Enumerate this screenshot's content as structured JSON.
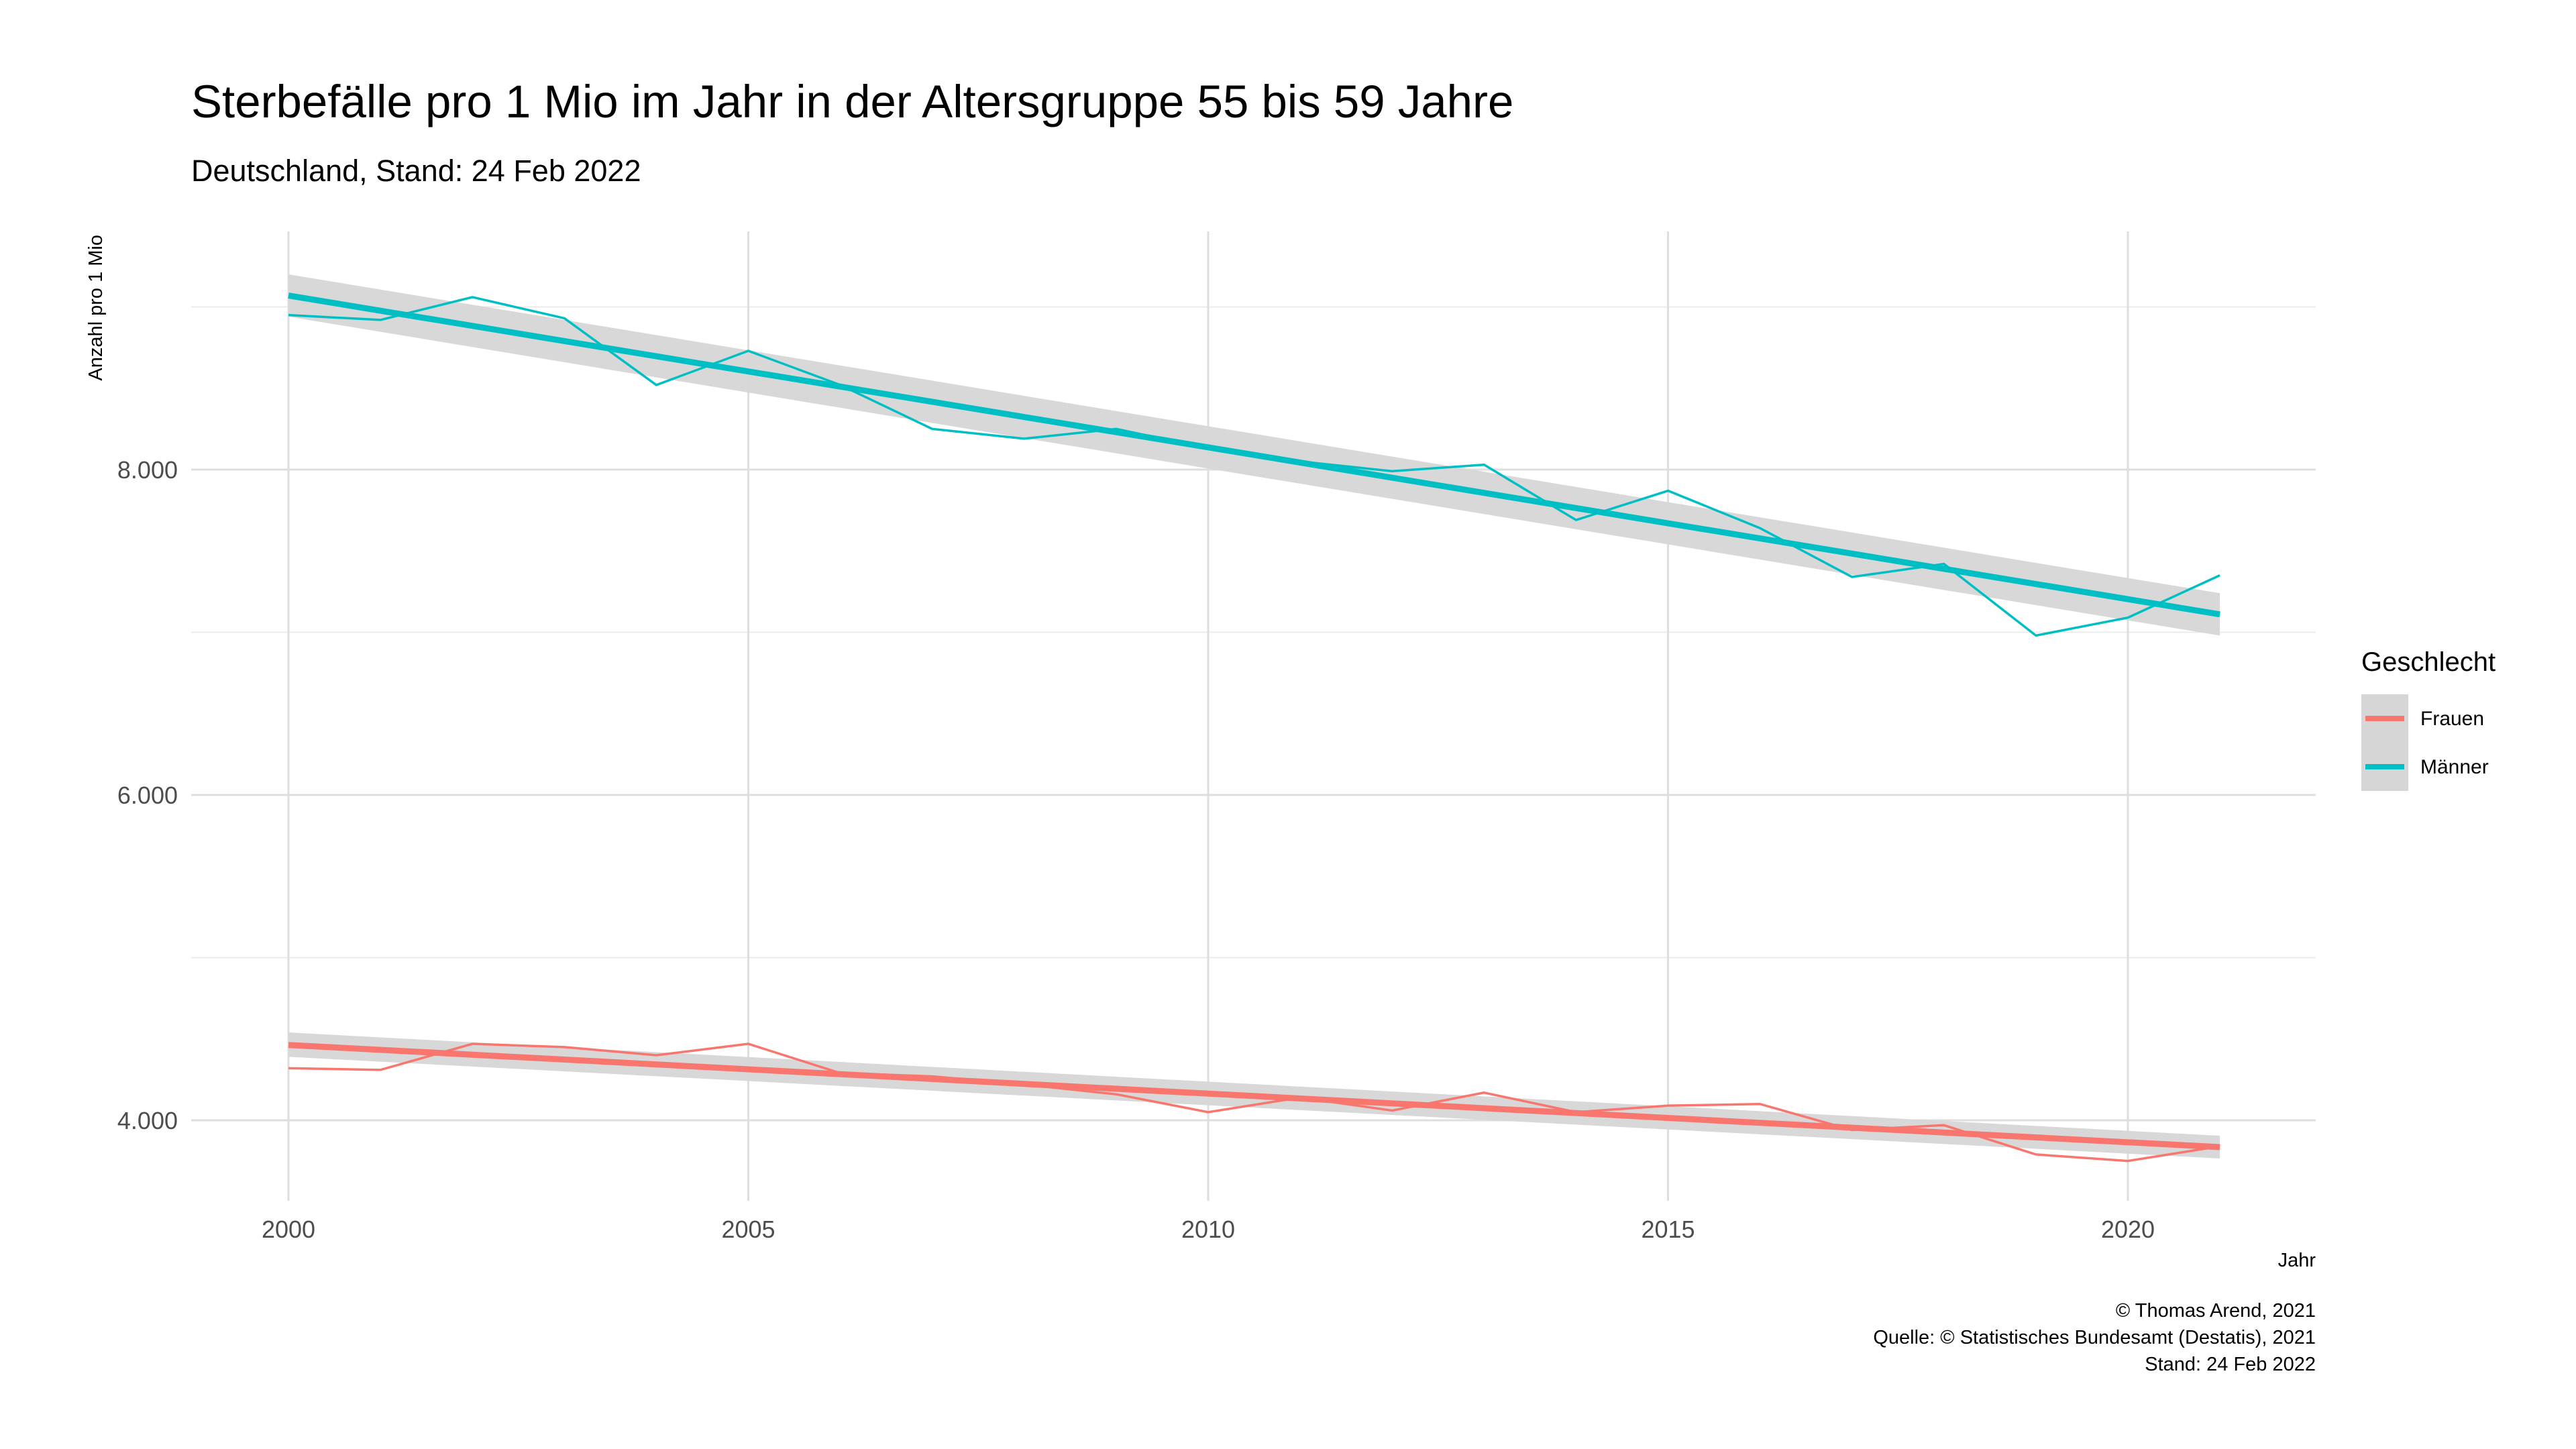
{
  "chart_data": {
    "type": "line",
    "title": "Sterbefälle pro 1 Mio im Jahr in der Altersgruppe 55 bis 59 Jahre",
    "subtitle": "Deutschland, Stand: 24 Feb 2022",
    "xlabel": "Jahr",
    "ylabel": "Anzahl pro 1 Mio",
    "xlim": [
      1999,
      2022
    ],
    "ylim": [
      3500,
      9500
    ],
    "x_ticks": [
      2000,
      2005,
      2010,
      2015,
      2020
    ],
    "x_tick_labels": [
      "2000",
      "2005",
      "2010",
      "2015",
      "2020"
    ],
    "y_ticks": [
      4000,
      6000,
      8000
    ],
    "y_tick_labels": [
      "4.000",
      "6.000",
      "8.000"
    ],
    "y_minor_ticks": [
      5000,
      7000,
      9000
    ],
    "grid": true,
    "legend": {
      "title": "Geschlecht",
      "position": "right"
    },
    "x": [
      2000,
      2001,
      2002,
      2003,
      2004,
      2005,
      2006,
      2007,
      2008,
      2009,
      2010,
      2011,
      2012,
      2013,
      2014,
      2015,
      2016,
      2017,
      2018,
      2019,
      2020,
      2021
    ],
    "series": [
      {
        "name": "Frauen",
        "color": "#F8766D",
        "values": [
          4320,
          4310,
          4470,
          4450,
          4400,
          4470,
          4290,
          4270,
          4220,
          4160,
          4050,
          4140,
          4060,
          4170,
          4050,
          4090,
          4100,
          3940,
          3970,
          3790,
          3750,
          3840
        ],
        "trend": [
          4463,
          3835
        ],
        "band": [
          [
            4540,
            4390
          ],
          [
            3905,
            3765
          ]
        ]
      },
      {
        "name": "Männer",
        "color": "#00BFC4",
        "values": [
          8950,
          8920,
          9060,
          8930,
          8520,
          8730,
          8520,
          8250,
          8190,
          8250,
          8130,
          8050,
          7990,
          8030,
          7690,
          7870,
          7640,
          7340,
          7420,
          6980,
          7090,
          7350
        ],
        "trend": [
          9070,
          7110
        ],
        "band": [
          [
            9200,
            8940
          ],
          [
            7240,
            6980
          ]
        ]
      }
    ],
    "band_color": "#d6d6d6"
  },
  "caption": {
    "line1": "© Thomas Arend, 2021",
    "line2": "Quelle: © Statistisches Bundesamt (Destatis), 2021",
    "line3": "Stand: 24 Feb 2022"
  }
}
